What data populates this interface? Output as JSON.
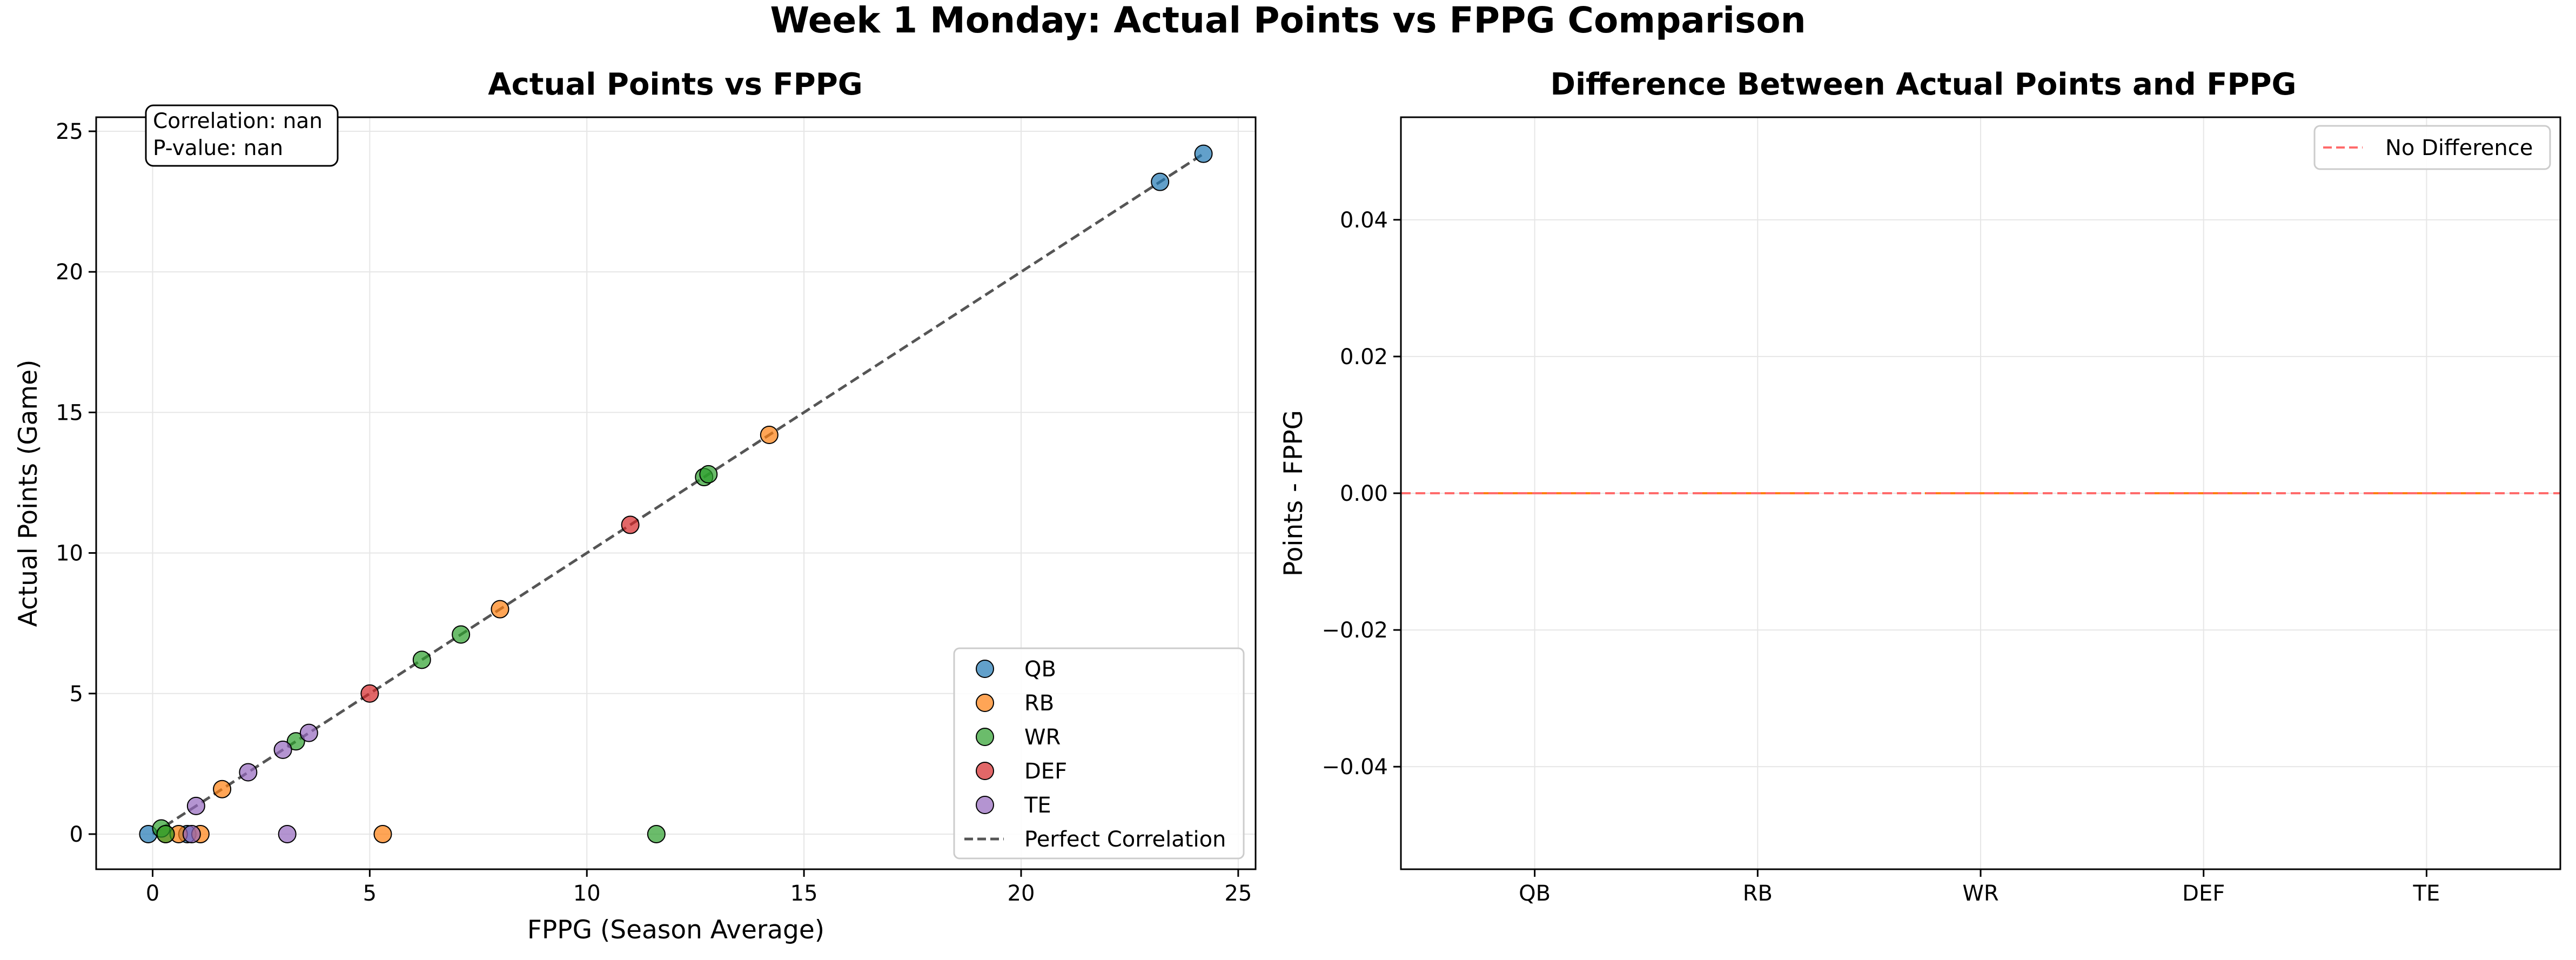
{
  "figure": {
    "suptitle": "Week 1 Monday: Actual Points vs FPPG Comparison"
  },
  "chart_data": [
    {
      "type": "scatter",
      "title": "Actual Points vs FPPG",
      "xlabel": "FPPG (Season Average)",
      "ylabel": "Actual Points (Game)",
      "xlim": [
        -1.3,
        25.4
      ],
      "ylim": [
        -1.25,
        25.5
      ],
      "xticks": [
        0,
        5,
        10,
        15,
        20,
        25
      ],
      "yticks": [
        0,
        5,
        10,
        15,
        20,
        25
      ],
      "grid": true,
      "legend_position": "lower-right",
      "annotation": [
        "Correlation: nan",
        "P-value: nan"
      ],
      "series": [
        {
          "name": "QB",
          "color": "#1f77b4",
          "points": [
            [
              -0.1,
              0
            ],
            [
              0.8,
              0
            ],
            [
              23.2,
              23.2
            ],
            [
              24.2,
              24.2
            ]
          ]
        },
        {
          "name": "RB",
          "color": "#ff7f0e",
          "points": [
            [
              0.3,
              0
            ],
            [
              0.6,
              0
            ],
            [
              1.1,
              0
            ],
            [
              1.6,
              1.6
            ],
            [
              5.3,
              0
            ],
            [
              8.0,
              8.0
            ],
            [
              14.2,
              14.2
            ]
          ]
        },
        {
          "name": "WR",
          "color": "#2ca02c",
          "points": [
            [
              0.2,
              0.2
            ],
            [
              0.3,
              0
            ],
            [
              3.3,
              3.3
            ],
            [
              6.2,
              6.2
            ],
            [
              7.1,
              7.1
            ],
            [
              11.6,
              0
            ],
            [
              12.7,
              12.7
            ],
            [
              12.8,
              12.8
            ]
          ]
        },
        {
          "name": "DEF",
          "color": "#d62728",
          "points": [
            [
              5.0,
              5.0
            ],
            [
              11.0,
              11.0
            ]
          ]
        },
        {
          "name": "TE",
          "color": "#9467bd",
          "points": [
            [
              0.9,
              0
            ],
            [
              1.0,
              1.0
            ],
            [
              2.2,
              2.2
            ],
            [
              3.0,
              3.0
            ],
            [
              3.1,
              0
            ],
            [
              3.6,
              3.6
            ]
          ]
        }
      ],
      "reference_line": {
        "name": "Perfect Correlation",
        "color": "#555555",
        "from": [
          0,
          0
        ],
        "to": [
          24.2,
          24.2
        ]
      }
    },
    {
      "type": "box",
      "title": "Difference Between Actual Points and FPPG",
      "xlabel": "",
      "ylabel": "Points - FPPG",
      "categories": [
        "QB",
        "RB",
        "WR",
        "DEF",
        "TE"
      ],
      "ylim": [
        -0.055,
        0.055
      ],
      "yticks": [
        0.04,
        0.02,
        0.0,
        -0.02,
        -0.04
      ],
      "ytick_labels": [
        "0.04",
        "0.02",
        "0.00",
        "−0.02",
        "−0.04"
      ],
      "grid": true,
      "legend_position": "upper-right",
      "values": {
        "QB": [
          0
        ],
        "RB": [
          0
        ],
        "WR": [
          0
        ],
        "DEF": [
          0,
          0
        ],
        "TE": [
          0
        ]
      },
      "median_color": "#ff7f0e",
      "reference_line": {
        "name": "No Difference",
        "color": "#ff6b6b",
        "y": 0
      }
    }
  ]
}
